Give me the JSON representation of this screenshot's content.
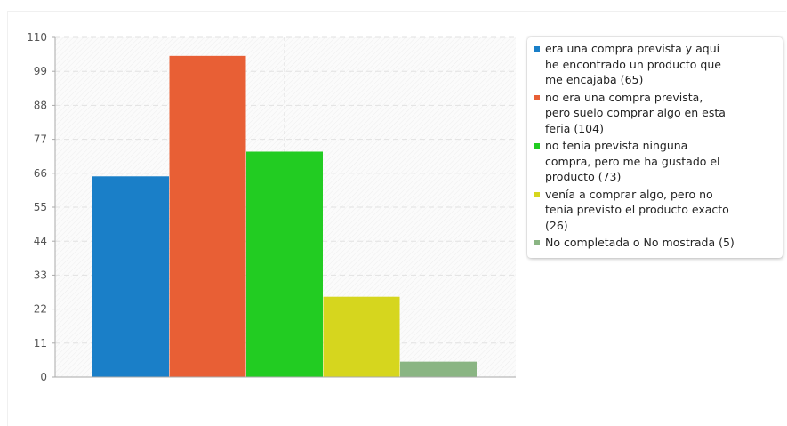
{
  "chart_data": {
    "type": "bar",
    "categories": [
      "era una compra prevista y aquí he encontrado un producto que me encajaba (65)",
      "no era una compra prevista, pero suelo comprar algo en esta feria (104)",
      "no tenía prevista ninguna compra, pero me ha gustado el producto (73)",
      "venía a comprar algo, pero no tenía previsto el producto exacto (26)",
      "No completada o No mostrada (5)"
    ],
    "values": [
      65,
      104,
      73,
      26,
      5
    ],
    "colors": [
      "#1a7fc8",
      "#e85f35",
      "#22cc22",
      "#d6d61e",
      "#8ab583"
    ],
    "yticks": [
      "0",
      "11",
      "22",
      "33",
      "44",
      "55",
      "66",
      "77",
      "88",
      "99",
      "110"
    ],
    "ylim": [
      0,
      110
    ],
    "grid": true,
    "legend_position": "right",
    "title": "",
    "xlabel": "",
    "ylabel": ""
  }
}
